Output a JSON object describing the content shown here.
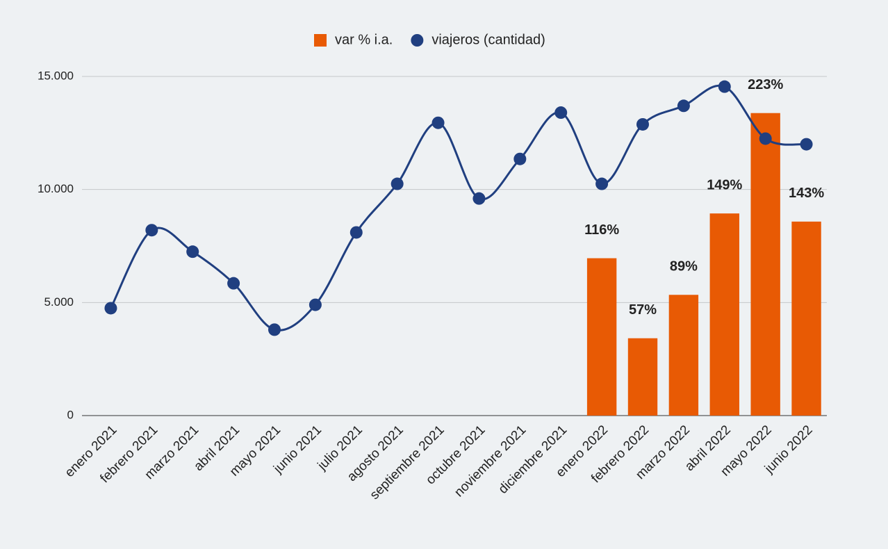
{
  "chart_data": {
    "type": "combo",
    "categories": [
      "enero 2021",
      "febrero 2021",
      "marzo 2021",
      "abril 2021",
      "mayo 2021",
      "junio 2021",
      "julio 2021",
      "agosto 2021",
      "septiembre 2021",
      "octubre 2021",
      "noviembre 2021",
      "diciembre 2021",
      "enero 2022",
      "febrero 2022",
      "marzo 2022",
      "abril 2022",
      "mayo 2022",
      "junio 2022"
    ],
    "series": [
      {
        "name": "var % i.a.",
        "type": "bar",
        "axis": "y2",
        "color": "#e85a04",
        "values": [
          null,
          null,
          null,
          null,
          null,
          null,
          null,
          null,
          null,
          null,
          null,
          null,
          116,
          57,
          89,
          149,
          223,
          143
        ],
        "value_labels": [
          null,
          null,
          null,
          null,
          null,
          null,
          null,
          null,
          null,
          null,
          null,
          null,
          "116%",
          "57%",
          "89%",
          "149%",
          "223%",
          "143%"
        ]
      },
      {
        "name": "viajeros (cantidad)",
        "type": "line",
        "color": "#203f80",
        "values": [
          4750,
          8200,
          7250,
          5850,
          3800,
          4900,
          8100,
          10250,
          12950,
          9600,
          11350,
          13400,
          10250,
          12880,
          13700,
          14550,
          12250,
          12000
        ]
      }
    ],
    "ylim": [
      0,
      15000
    ],
    "yticks": [
      0,
      {
        "value": 5000,
        "label": "5.000"
      },
      {
        "value": 10000,
        "label": "10.000"
      },
      {
        "value": 15000,
        "label": "15.000"
      }
    ],
    "y2lim": [
      0,
      250
    ],
    "grid": true,
    "legend": "top"
  }
}
